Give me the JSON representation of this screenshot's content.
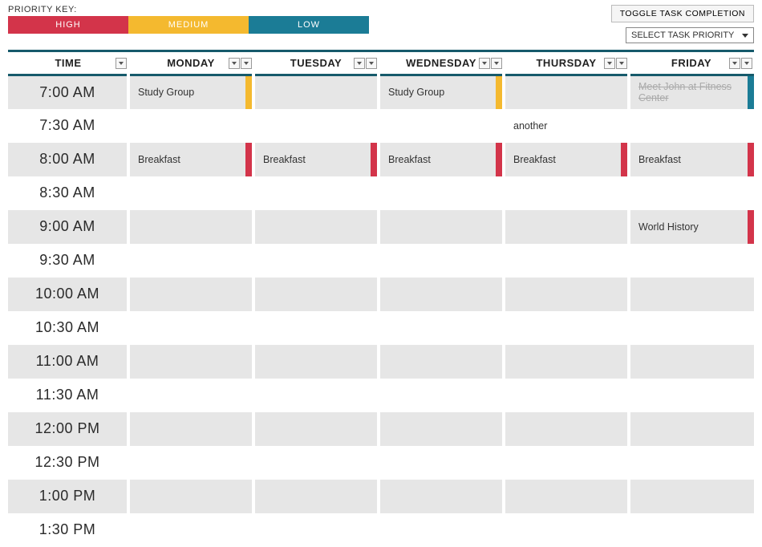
{
  "colors": {
    "high": "#d3344a",
    "medium": "#f4b92f",
    "low": "#1b7c96",
    "row_alt_bg": "#e6e6e6",
    "header_rule": "#165a6b"
  },
  "priority_key": {
    "label": "PRIORITY KEY:",
    "items": [
      {
        "label": "HIGH",
        "color_key": "high"
      },
      {
        "label": "MEDIUM",
        "color_key": "medium"
      },
      {
        "label": "LOW",
        "color_key": "low"
      }
    ]
  },
  "controls": {
    "toggle_label": "TOGGLE TASK COMPLETION",
    "select_label": "SELECT TASK PRIORITY"
  },
  "columns": [
    "TIME",
    "MONDAY",
    "TUESDAY",
    "WEDNESDAY",
    "THURSDAY",
    "FRIDAY"
  ],
  "time_slots": [
    "7:00 AM",
    "7:30 AM",
    "8:00 AM",
    "8:30 AM",
    "9:00 AM",
    "9:30 AM",
    "10:00 AM",
    "10:30 AM",
    "11:00 AM",
    "11:30 AM",
    "12:00 PM",
    "12:30 PM",
    "1:00 PM",
    "1:30 PM"
  ],
  "tasks": {
    "0": {
      "MONDAY": {
        "text": "Study Group",
        "priority": "medium",
        "completed": false
      },
      "WEDNESDAY": {
        "text": "Study Group",
        "priority": "medium",
        "completed": false
      },
      "FRIDAY": {
        "text": "Meet John at Fitness Center",
        "priority": "low",
        "completed": true
      }
    },
    "1": {
      "THURSDAY": {
        "text": "another",
        "priority": null,
        "completed": false
      }
    },
    "2": {
      "MONDAY": {
        "text": "Breakfast",
        "priority": "high",
        "completed": false
      },
      "TUESDAY": {
        "text": "Breakfast",
        "priority": "high",
        "completed": false
      },
      "WEDNESDAY": {
        "text": "Breakfast",
        "priority": "high",
        "completed": false
      },
      "THURSDAY": {
        "text": "Breakfast",
        "priority": "high",
        "completed": false
      },
      "FRIDAY": {
        "text": "Breakfast",
        "priority": "high",
        "completed": false
      }
    },
    "4": {
      "FRIDAY": {
        "text": "World History",
        "priority": "high",
        "completed": false
      }
    }
  }
}
